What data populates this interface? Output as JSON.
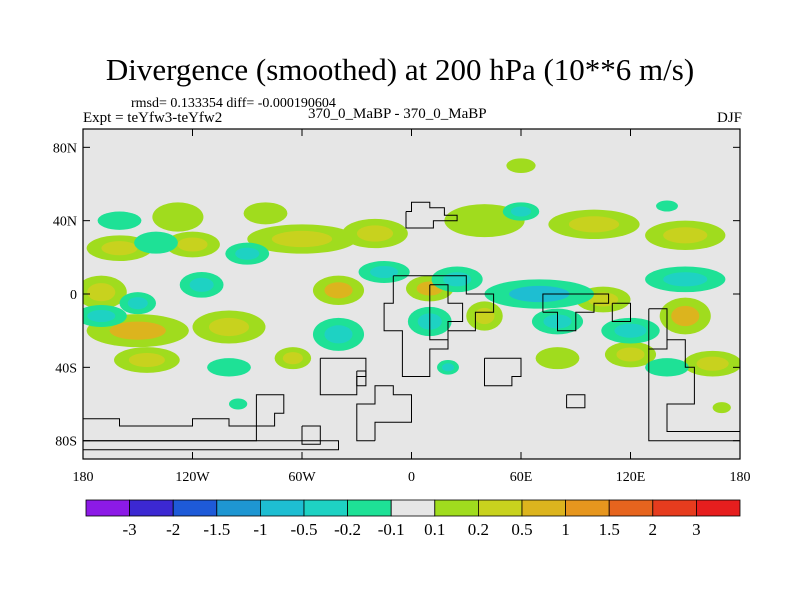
{
  "chart_data": {
    "type": "filled-contour-map",
    "title": "Divergence (smoothed) at 200 hPa (10**6 m/s)",
    "stats_text": "rmsd= 0.133354  diff= -0.000190604",
    "experiment_label": "Expt = teYfw3-teYfw2",
    "center_label": "370_0_MaBP - 370_0_MaBP",
    "season": "DJF",
    "y_ticks": [
      {
        "lat": 80,
        "label": "80N"
      },
      {
        "lat": 40,
        "label": "40N"
      },
      {
        "lat": 0,
        "label": "0"
      },
      {
        "lat": -40,
        "label": "40S"
      },
      {
        "lat": -80,
        "label": "80S"
      }
    ],
    "x_ticks": [
      {
        "lon": -180,
        "label": "180"
      },
      {
        "lon": -120,
        "label": "120W"
      },
      {
        "lon": -60,
        "label": "60W"
      },
      {
        "lon": 0,
        "label": "0"
      },
      {
        "lon": 60,
        "label": "60E"
      },
      {
        "lon": 120,
        "label": "120E"
      },
      {
        "lon": 180,
        "label": "180"
      }
    ],
    "xlim": [
      -180,
      180
    ],
    "ylim": [
      -90,
      90
    ],
    "colorbar": {
      "colors": [
        "#8c1ae6",
        "#3c28d2",
        "#1e5ad8",
        "#1e96d2",
        "#1ebed2",
        "#1ed2c3",
        "#1ee196",
        "#e6e6e6",
        "#a0dc1e",
        "#c8d21e",
        "#dcb41e",
        "#e6961e",
        "#e6641e",
        "#e63c1e",
        "#e61e1e"
      ],
      "labels": [
        "-3",
        "-2",
        "-1.5",
        "-1",
        "-0.5",
        "-0.2",
        "-0.1",
        "0.1",
        "0.2",
        "0.5",
        "1",
        "1.5",
        "2",
        "3"
      ]
    },
    "field_blobs": [
      {
        "lon": -160,
        "lat": 25,
        "rx": 18,
        "ry": 7,
        "level": 1,
        "core": 2
      },
      {
        "lon": -128,
        "lat": 42,
        "rx": 14,
        "ry": 8,
        "level": 1,
        "core": 0
      },
      {
        "lon": -120,
        "lat": 27,
        "rx": 15,
        "ry": 7,
        "level": 1,
        "core": 2
      },
      {
        "lon": -80,
        "lat": 44,
        "rx": 12,
        "ry": 6,
        "level": 1,
        "core": 0
      },
      {
        "lon": -60,
        "lat": 30,
        "rx": 30,
        "ry": 8,
        "level": 1,
        "core": 2
      },
      {
        "lon": -20,
        "lat": 33,
        "rx": 18,
        "ry": 8,
        "level": 1,
        "core": 2
      },
      {
        "lon": 40,
        "lat": 40,
        "rx": 22,
        "ry": 9,
        "level": 1,
        "core": 0
      },
      {
        "lon": 100,
        "lat": 38,
        "rx": 25,
        "ry": 8,
        "level": 1,
        "core": 2
      },
      {
        "lon": 150,
        "lat": 32,
        "rx": 22,
        "ry": 8,
        "level": 1,
        "core": 2
      },
      {
        "lon": -170,
        "lat": 1,
        "rx": 14,
        "ry": 9,
        "level": 1,
        "core": 2
      },
      {
        "lon": -40,
        "lat": 2,
        "rx": 14,
        "ry": 8,
        "level": 1,
        "core": 3
      },
      {
        "lon": 10,
        "lat": 3,
        "rx": 13,
        "ry": 7,
        "level": 1,
        "core": 3
      },
      {
        "lon": 40,
        "lat": -12,
        "rx": 10,
        "ry": 8,
        "level": 1,
        "core": 2
      },
      {
        "lon": 105,
        "lat": -3,
        "rx": 15,
        "ry": 7,
        "level": 1,
        "core": 2
      },
      {
        "lon": 150,
        "lat": -12,
        "rx": 14,
        "ry": 10,
        "level": 1,
        "core": 3
      },
      {
        "lon": -150,
        "lat": -20,
        "rx": 28,
        "ry": 9,
        "level": 1,
        "core": 3
      },
      {
        "lon": -100,
        "lat": -18,
        "rx": 20,
        "ry": 9,
        "level": 1,
        "core": 2
      },
      {
        "lon": -145,
        "lat": -36,
        "rx": 18,
        "ry": 7,
        "level": 1,
        "core": 2
      },
      {
        "lon": -65,
        "lat": -35,
        "rx": 10,
        "ry": 6,
        "level": 1,
        "core": 2
      },
      {
        "lon": 120,
        "lat": -33,
        "rx": 14,
        "ry": 7,
        "level": 1,
        "core": 2
      },
      {
        "lon": 165,
        "lat": -38,
        "rx": 16,
        "ry": 7,
        "level": 1,
        "core": 2
      },
      {
        "lon": 80,
        "lat": -35,
        "rx": 12,
        "ry": 6,
        "level": 1,
        "core": 0
      },
      {
        "lon": 60,
        "lat": 70,
        "rx": 8,
        "ry": 4,
        "level": 1,
        "core": 0
      },
      {
        "lon": -140,
        "lat": 28,
        "rx": 12,
        "ry": 6,
        "level": -1,
        "core": -1
      },
      {
        "lon": -90,
        "lat": 22,
        "rx": 12,
        "ry": 6,
        "level": -1,
        "core": -2
      },
      {
        "lon": -15,
        "lat": 12,
        "rx": 14,
        "ry": 6,
        "level": -1,
        "core": -2
      },
      {
        "lon": 25,
        "lat": 8,
        "rx": 14,
        "ry": 7,
        "level": -1,
        "core": -2
      },
      {
        "lon": 70,
        "lat": 0,
        "rx": 30,
        "ry": 8,
        "level": -1,
        "core": -3
      },
      {
        "lon": 150,
        "lat": 8,
        "rx": 22,
        "ry": 7,
        "level": -1,
        "core": -2
      },
      {
        "lon": -170,
        "lat": -12,
        "rx": 14,
        "ry": 6,
        "level": -1,
        "core": -2
      },
      {
        "lon": -150,
        "lat": -5,
        "rx": 10,
        "ry": 6,
        "level": -1,
        "core": -2
      },
      {
        "lon": -115,
        "lat": 5,
        "rx": 12,
        "ry": 7,
        "level": -1,
        "core": -2
      },
      {
        "lon": -40,
        "lat": -22,
        "rx": 14,
        "ry": 9,
        "level": -1,
        "core": -2
      },
      {
        "lon": 10,
        "lat": -15,
        "rx": 12,
        "ry": 8,
        "level": -1,
        "core": -2
      },
      {
        "lon": 80,
        "lat": -15,
        "rx": 14,
        "ry": 7,
        "level": -1,
        "core": -2
      },
      {
        "lon": 120,
        "lat": -20,
        "rx": 16,
        "ry": 7,
        "level": -1,
        "core": -2
      },
      {
        "lon": -160,
        "lat": 40,
        "rx": 12,
        "ry": 5,
        "level": -1,
        "core": -1
      },
      {
        "lon": -100,
        "lat": -40,
        "rx": 12,
        "ry": 5,
        "level": -1,
        "core": -1
      },
      {
        "lon": 60,
        "lat": 45,
        "rx": 10,
        "ry": 5,
        "level": -1,
        "core": -2
      },
      {
        "lon": 20,
        "lat": -40,
        "rx": 6,
        "ry": 4,
        "level": -1,
        "core": -2
      },
      {
        "lon": 140,
        "lat": -40,
        "rx": 12,
        "ry": 5,
        "level": -1,
        "core": -1
      },
      {
        "lon": 140,
        "lat": 48,
        "rx": 6,
        "ry": 3,
        "level": -1,
        "core": -1
      },
      {
        "lon": -95,
        "lat": -60,
        "rx": 5,
        "ry": 3,
        "level": -1,
        "core": -1
      },
      {
        "lon": 170,
        "lat": -62,
        "rx": 5,
        "ry": 3,
        "level": 1,
        "core": 0
      }
    ],
    "coastlines": [
      [
        [
          -3,
          45
        ],
        [
          0,
          45
        ],
        [
          0,
          50
        ],
        [
          10,
          50
        ],
        [
          10,
          47
        ],
        [
          18,
          47
        ],
        [
          18,
          43
        ],
        [
          25,
          43
        ],
        [
          25,
          40
        ],
        [
          12,
          40
        ],
        [
          12,
          36
        ],
        [
          -3,
          36
        ],
        [
          -3,
          45
        ]
      ],
      [
        [
          -10,
          10
        ],
        [
          -10,
          -5
        ],
        [
          -15,
          -5
        ],
        [
          -15,
          -20
        ],
        [
          -5,
          -20
        ],
        [
          -5,
          -45
        ],
        [
          10,
          -45
        ],
        [
          10,
          -30
        ],
        [
          20,
          -30
        ],
        [
          20,
          -20
        ],
        [
          35,
          -20
        ],
        [
          35,
          -10
        ],
        [
          45,
          -10
        ],
        [
          45,
          0
        ],
        [
          30,
          0
        ],
        [
          30,
          10
        ],
        [
          -10,
          10
        ]
      ],
      [
        [
          -50,
          -35
        ],
        [
          -50,
          -55
        ],
        [
          -30,
          -55
        ],
        [
          -30,
          -45
        ],
        [
          -25,
          -45
        ],
        [
          -25,
          -35
        ],
        [
          -50,
          -35
        ]
      ],
      [
        [
          10,
          5
        ],
        [
          20,
          5
        ],
        [
          20,
          -5
        ],
        [
          28,
          -5
        ],
        [
          28,
          -15
        ],
        [
          20,
          -15
        ],
        [
          20,
          -25
        ],
        [
          10,
          -25
        ],
        [
          10,
          5
        ]
      ],
      [
        [
          40,
          -35
        ],
        [
          40,
          -50
        ],
        [
          55,
          -50
        ],
        [
          55,
          -45
        ],
        [
          60,
          -45
        ],
        [
          60,
          -35
        ],
        [
          40,
          -35
        ]
      ],
      [
        [
          72,
          -10
        ],
        [
          80,
          -10
        ],
        [
          80,
          -20
        ],
        [
          90,
          -20
        ],
        [
          90,
          -10
        ],
        [
          100,
          -10
        ],
        [
          100,
          -5
        ],
        [
          108,
          -5
        ],
        [
          108,
          0
        ],
        [
          72,
          0
        ],
        [
          72,
          -10
        ]
      ],
      [
        [
          110,
          -5
        ],
        [
          120,
          -5
        ],
        [
          120,
          -15
        ],
        [
          110,
          -15
        ],
        [
          110,
          -5
        ]
      ],
      [
        [
          130,
          -8
        ],
        [
          140,
          -8
        ],
        [
          140,
          -30
        ],
        [
          130,
          -30
        ],
        [
          130,
          -8
        ]
      ],
      [
        [
          -78,
          -55
        ],
        [
          -85,
          -55
        ],
        [
          -85,
          -72
        ],
        [
          -75,
          -72
        ],
        [
          -75,
          -65
        ],
        [
          -70,
          -65
        ],
        [
          -70,
          -55
        ],
        [
          -78,
          -55
        ]
      ],
      [
        [
          -180,
          -68
        ],
        [
          -160,
          -68
        ],
        [
          -160,
          -72
        ],
        [
          -120,
          -72
        ],
        [
          -120,
          -68
        ],
        [
          -100,
          -68
        ],
        [
          -100,
          -72
        ],
        [
          -85,
          -72
        ],
        [
          -85,
          -80
        ],
        [
          -180,
          -80
        ]
      ],
      [
        [
          -60,
          -72
        ],
        [
          -50,
          -72
        ],
        [
          -50,
          -82
        ],
        [
          -60,
          -82
        ],
        [
          -60,
          -72
        ]
      ],
      [
        [
          -30,
          -42
        ],
        [
          -25,
          -42
        ],
        [
          -25,
          -50
        ],
        [
          -30,
          -50
        ],
        [
          -30,
          -42
        ]
      ],
      [
        [
          140,
          -25
        ],
        [
          150,
          -25
        ],
        [
          150,
          -40
        ],
        [
          155,
          -40
        ],
        [
          155,
          -60
        ],
        [
          140,
          -60
        ],
        [
          140,
          -75
        ],
        [
          180,
          -75
        ],
        [
          180,
          -80
        ],
        [
          130,
          -80
        ],
        [
          130,
          -30
        ],
        [
          140,
          -30
        ],
        [
          140,
          -25
        ]
      ],
      [
        [
          -20,
          -80
        ],
        [
          -20,
          -70
        ],
        [
          0,
          -70
        ],
        [
          0,
          -55
        ],
        [
          -10,
          -55
        ],
        [
          -10,
          -50
        ],
        [
          -20,
          -50
        ],
        [
          -20,
          -60
        ],
        [
          -30,
          -60
        ],
        [
          -30,
          -80
        ],
        [
          -20,
          -80
        ]
      ],
      [
        [
          -180,
          -85
        ],
        [
          -40,
          -85
        ],
        [
          -40,
          -80
        ],
        [
          -180,
          -80
        ]
      ],
      [
        [
          85,
          -55
        ],
        [
          95,
          -55
        ],
        [
          95,
          -62
        ],
        [
          85,
          -62
        ],
        [
          85,
          -55
        ]
      ]
    ]
  }
}
